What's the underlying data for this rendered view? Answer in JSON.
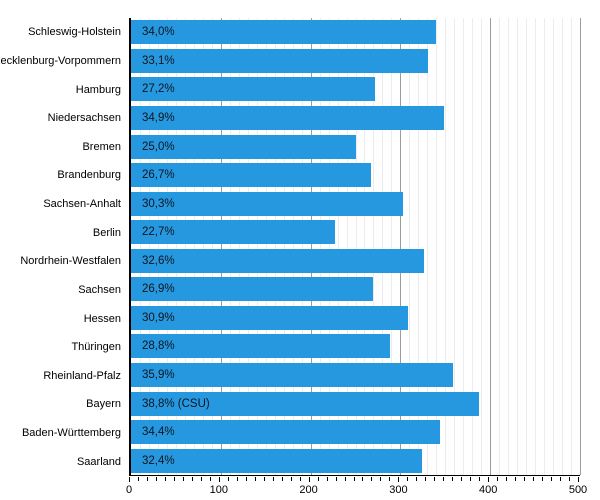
{
  "chart_data": {
    "type": "bar",
    "orientation": "horizontal",
    "title": "",
    "xlabel": "",
    "ylabel": "",
    "categories": [
      "Schleswig-Holstein",
      "Mecklenburg-Vorpommern",
      "Hamburg",
      "Niedersachsen",
      "Bremen",
      "Brandenburg",
      "Sachsen-Anhalt",
      "Berlin",
      "Nordrhein-Westfalen",
      "Sachsen",
      "Hessen",
      "Thüringen",
      "Rheinland-Pfalz",
      "Bayern",
      "Baden-Württemberg",
      "Saarland"
    ],
    "values_percent": [
      34.0,
      33.1,
      27.2,
      34.9,
      25.0,
      26.7,
      30.3,
      22.7,
      32.6,
      26.9,
      30.9,
      28.8,
      35.9,
      38.8,
      34.4,
      32.4
    ],
    "bar_labels": [
      "34,0%",
      "33,1%",
      "27,2%",
      "34,9%",
      "25,0%",
      "26,7%",
      "30,3%",
      "22,7%",
      "32,6%",
      "26,9%",
      "30,9%",
      "28,8%",
      "35,9%",
      "38,8% (CSU)",
      "34,4%",
      "32,4%"
    ],
    "xlim": [
      0,
      500
    ],
    "x_major_ticks": [
      0,
      100,
      200,
      300,
      400,
      500
    ],
    "x_minor_step": 10,
    "bar_units_per_value": 10,
    "grid": true,
    "legend": "none",
    "colors": {
      "bar": "#2598E0",
      "bar_value_text": "#10141c",
      "gridline_minor": "#ececec",
      "gridline_major": "#9c9c9c",
      "axis": "#000000",
      "background": "#ffffff"
    }
  }
}
